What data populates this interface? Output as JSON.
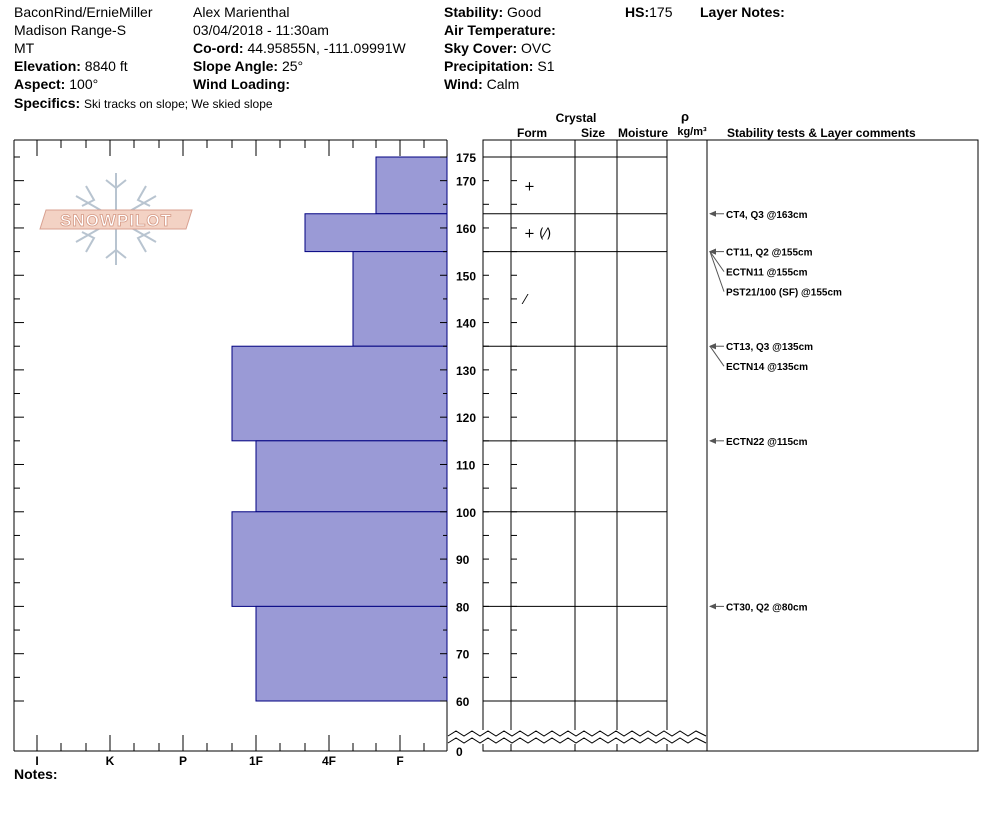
{
  "header": {
    "location": "BaconRind/ErnieMiller",
    "range": "Madison Range-S",
    "state": "MT",
    "elevation_label": "Elevation:",
    "elevation_value": "8840 ft",
    "aspect_label": "Aspect:",
    "aspect_value": "100°",
    "observer": "Alex Marienthal",
    "datetime": "03/04/2018 - 11:30am",
    "coord_label": "Co-ord:",
    "coord_value": "44.95855N, -111.09991W",
    "slope_label": "Slope Angle:",
    "slope_value": "25°",
    "wind_loading_label": "Wind Loading:",
    "wind_loading_value": "",
    "stability_label": "Stability:",
    "stability_value": "Good",
    "air_temp_label": "Air Temperature:",
    "air_temp_value": "",
    "sky_label": "Sky Cover:",
    "sky_value": "OVC",
    "precip_label": "Precipitation:",
    "precip_value": "S1",
    "wind_label": "Wind:",
    "wind_value": "Calm",
    "hs_label": "HS:",
    "hs_value": "175",
    "layer_notes_label": "Layer Notes:",
    "specifics_label": "Specifics:",
    "specifics_value": "Ski tracks on slope; We skied slope",
    "notes_label": "Notes:"
  },
  "logo": {
    "text": "SNOWPILOT"
  },
  "columns": {
    "crystal": "Crystal",
    "form": "Form",
    "size": "Size",
    "moisture": "Moisture",
    "rho": "ρ",
    "density_unit": "kg/m³",
    "tests": "Stability tests & Layer comments"
  },
  "chart_data": {
    "type": "bar",
    "description_type": "snow hardness profile",
    "y_range": [
      60,
      175
    ],
    "y_ticks": [
      60,
      70,
      80,
      90,
      100,
      110,
      120,
      130,
      140,
      150,
      160,
      170,
      175
    ],
    "y_break_label": "0",
    "hardness_ticks": [
      "I",
      "K",
      "P",
      "1F",
      "4F",
      "F"
    ],
    "layers": [
      {
        "top": 175,
        "bottom": 163,
        "hardness": "F+"
      },
      {
        "top": 163,
        "bottom": 155,
        "hardness": "4F+"
      },
      {
        "top": 155,
        "bottom": 135,
        "hardness": "4F-"
      },
      {
        "top": 135,
        "bottom": 115,
        "hardness": "1F+"
      },
      {
        "top": 115,
        "bottom": 100,
        "hardness": "1F"
      },
      {
        "top": 100,
        "bottom": 80,
        "hardness": "1F+"
      },
      {
        "top": 80,
        "bottom": 60,
        "hardness": "1F"
      }
    ],
    "layer_boundaries": [
      175,
      163,
      155,
      135,
      115,
      100,
      80,
      60
    ],
    "grain_symbols": [
      {
        "depth": 169,
        "symbol": "+"
      },
      {
        "depth": 159,
        "symbol": "+ (⁄)"
      },
      {
        "depth": 145,
        "symbol": "⁄"
      }
    ],
    "stability_tests": [
      {
        "depth": 163,
        "label": "CT4, Q3 @163cm"
      },
      {
        "depth": 155,
        "label": "CT11, Q2 @155cm"
      },
      {
        "depth": 155,
        "label": "ECTN11 @155cm"
      },
      {
        "depth": 155,
        "label": "PST21/100 (SF) @155cm"
      },
      {
        "depth": 135,
        "label": "CT13, Q3 @135cm"
      },
      {
        "depth": 135,
        "label": "ECTN14 @135cm"
      },
      {
        "depth": 115,
        "label": "ECTN22 @115cm"
      },
      {
        "depth": 80,
        "label": "CT30, Q2 @80cm"
      }
    ],
    "colors": {
      "fill": "#9a9ad6",
      "stroke": "#000080",
      "text": "#000000"
    }
  }
}
